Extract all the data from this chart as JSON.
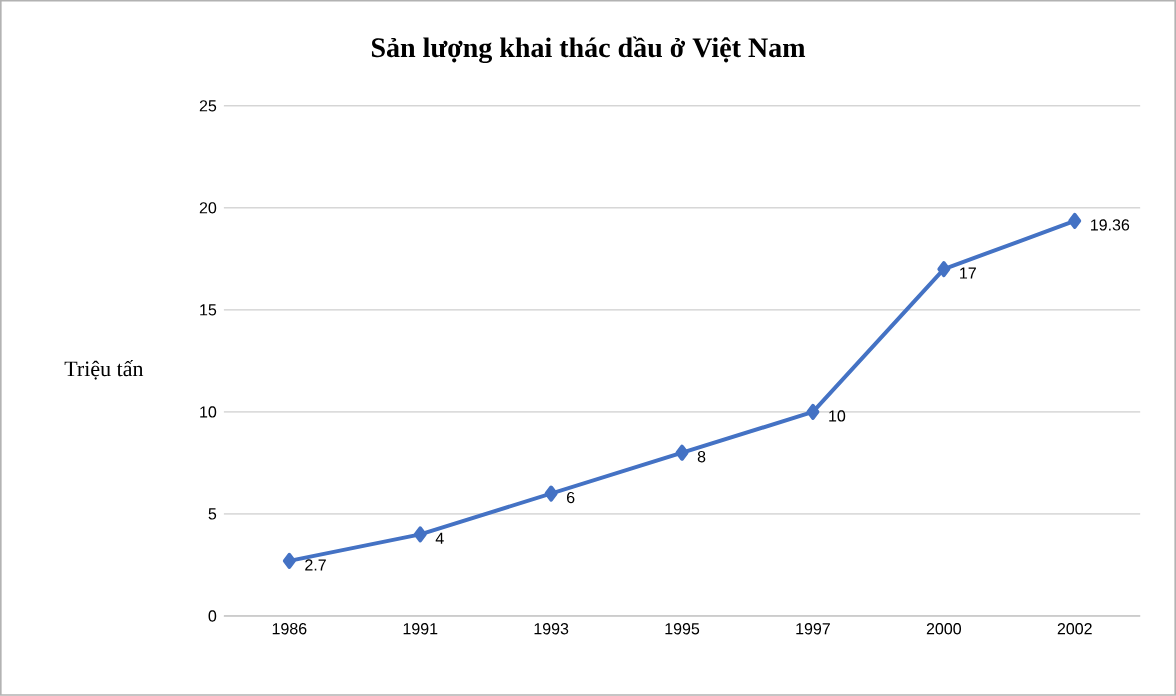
{
  "chart_data": {
    "type": "line",
    "title": "Sản lượng khai thác dầu ở Việt Nam",
    "ylabel": "Triệu  tấn",
    "categories": [
      "1986",
      "1991",
      "1993",
      "1995",
      "1997",
      "2000",
      "2002"
    ],
    "values": [
      2.7,
      4,
      6,
      8,
      10,
      17,
      19.36
    ],
    "color": "#4472c4",
    "ylim": [
      0,
      25
    ],
    "yticks": [
      0,
      5,
      10,
      15,
      20,
      25
    ],
    "grid": "y",
    "marker": "diamond",
    "data_labels": true
  }
}
